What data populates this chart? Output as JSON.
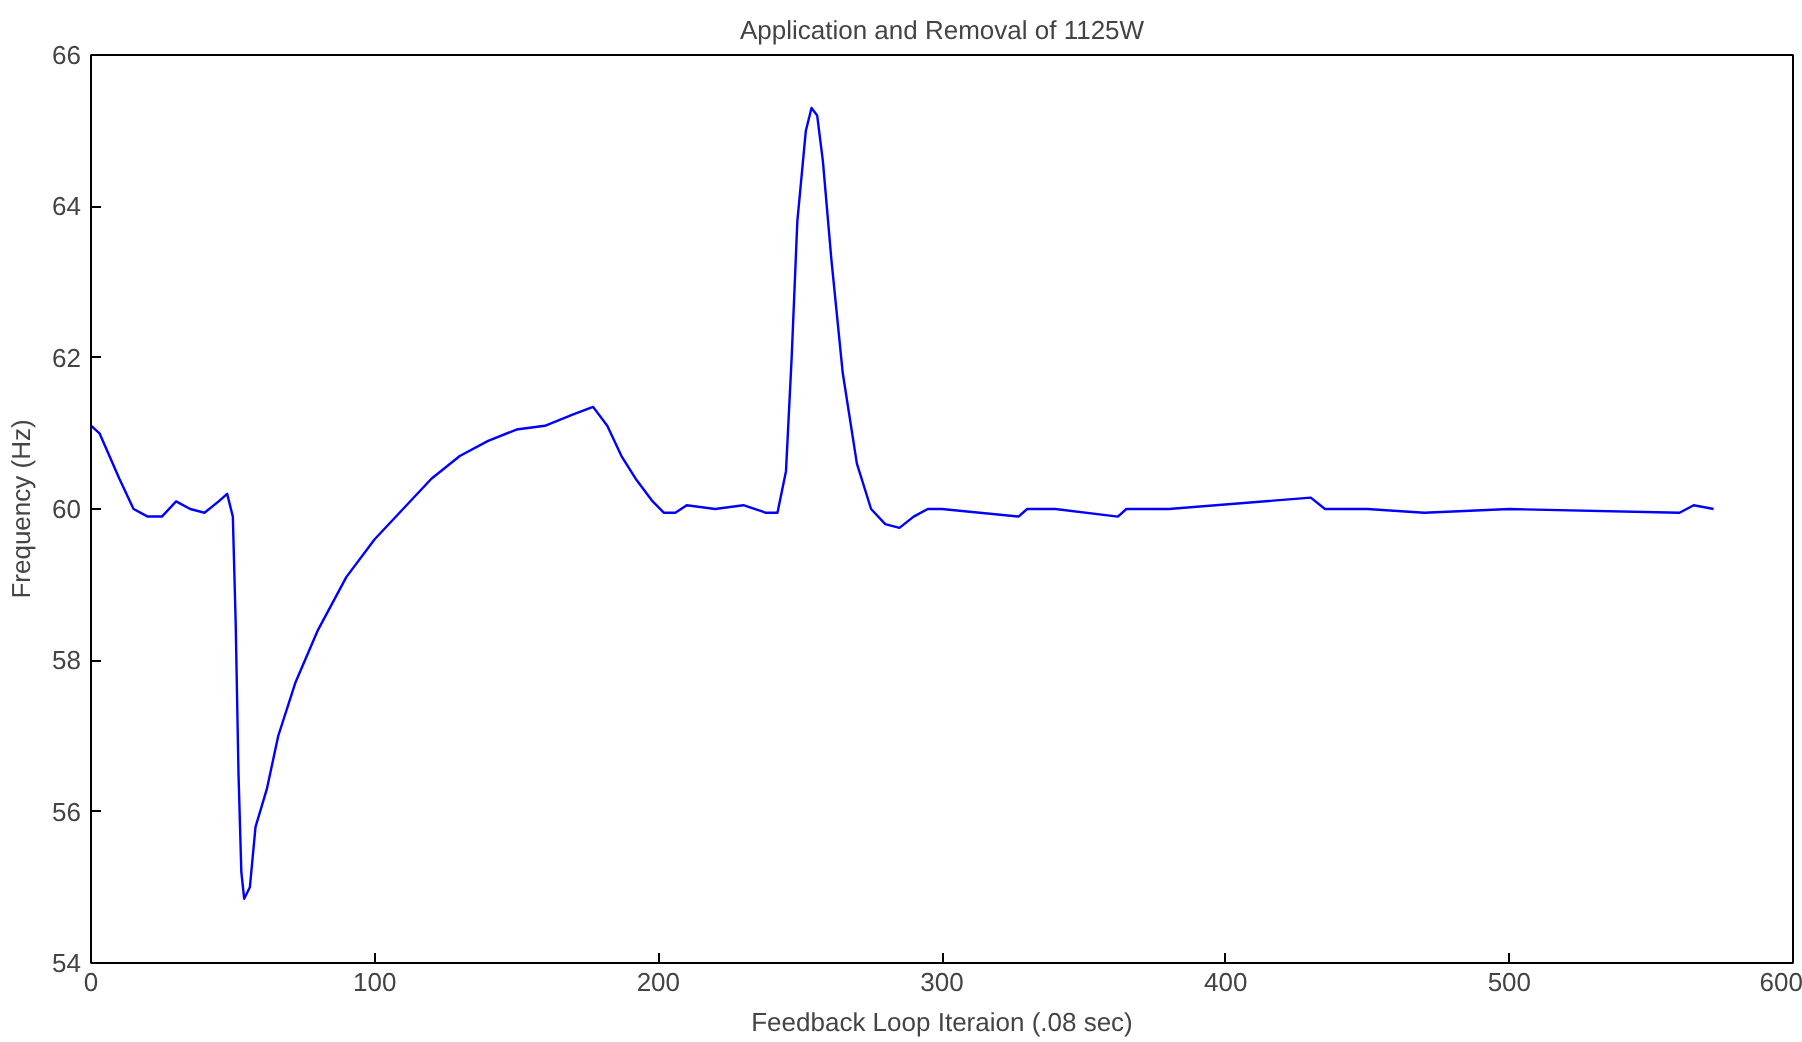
{
  "chart_data": {
    "type": "line",
    "title": "Application and Removal of 1125W",
    "xlabel": "Feedback Loop Iteraion (.08 sec)",
    "ylabel": "Frequency (Hz)",
    "x": [
      0,
      3,
      10,
      15,
      20,
      25,
      30,
      35,
      40,
      45,
      48,
      50,
      51,
      52,
      53,
      54,
      56,
      58,
      62,
      66,
      72,
      80,
      90,
      100,
      110,
      120,
      130,
      140,
      150,
      160,
      170,
      177,
      182,
      187,
      192,
      198,
      202,
      206,
      210,
      220,
      230,
      238,
      242,
      245,
      247,
      249,
      252,
      254,
      256,
      258,
      261,
      265,
      270,
      275,
      280,
      285,
      290,
      295,
      300,
      327,
      330,
      340,
      362,
      365,
      380,
      430,
      435,
      450,
      470,
      500,
      560,
      565,
      572
    ],
    "series": [
      {
        "color": "#0000ff",
        "values": [
          61.1,
          61.0,
          60.4,
          60.0,
          59.9,
          59.9,
          60.1,
          60.0,
          59.95,
          60.1,
          60.2,
          59.9,
          58.5,
          56.5,
          55.2,
          54.85,
          55.0,
          55.8,
          56.3,
          57.0,
          57.7,
          58.4,
          59.1,
          59.6,
          60.0,
          60.4,
          60.7,
          60.9,
          61.05,
          61.1,
          61.25,
          61.35,
          61.1,
          60.7,
          60.4,
          60.1,
          59.95,
          59.95,
          60.05,
          60.0,
          60.05,
          59.95,
          59.95,
          60.5,
          62.0,
          63.8,
          65.0,
          65.3,
          65.2,
          64.6,
          63.3,
          61.8,
          60.6,
          60.0,
          59.8,
          59.75,
          59.9,
          60.0,
          60.0,
          59.9,
          60.0,
          60.0,
          59.9,
          60.0,
          60.0,
          60.15,
          60.0,
          60.0,
          59.95,
          60.0,
          59.95,
          60.05,
          60.0
        ]
      }
    ],
    "xlim": [
      0,
      600
    ],
    "ylim": [
      54,
      66
    ],
    "xticks": [
      0,
      100,
      200,
      300,
      400,
      500,
      600
    ],
    "yticks": [
      54,
      56,
      58,
      60,
      62,
      64,
      66
    ],
    "grid": false
  }
}
